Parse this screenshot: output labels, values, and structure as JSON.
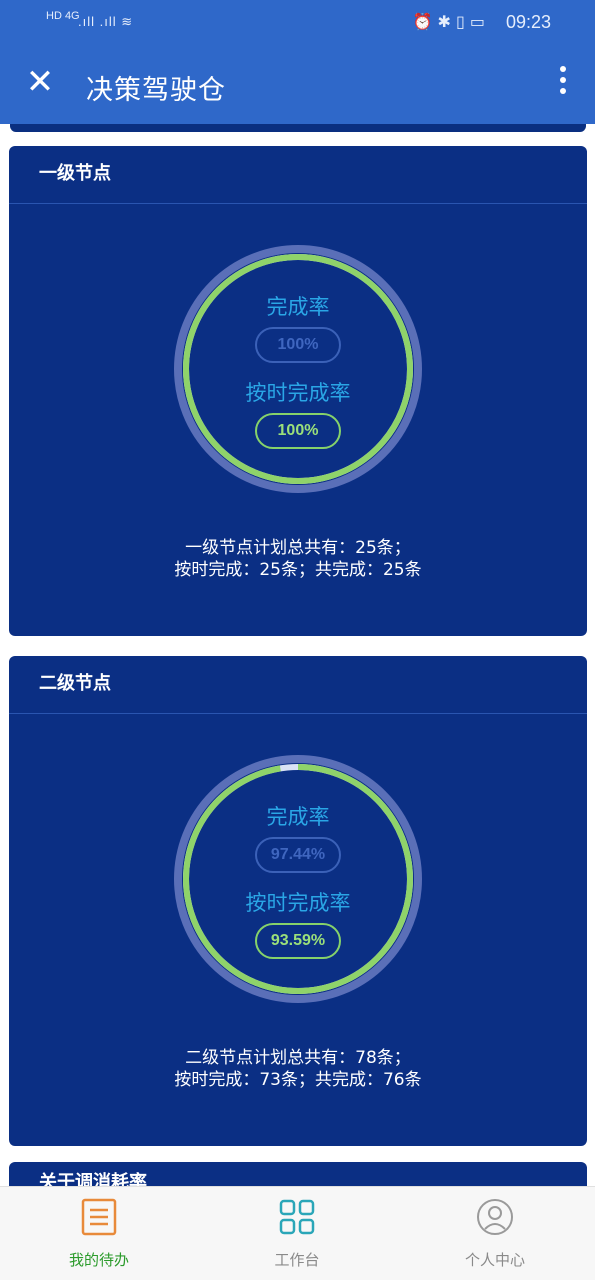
{
  "status_bar": {
    "left_indicators": "HD 4G",
    "right_icons": "⏰ ✱ ▯ ▭",
    "time": "09:23"
  },
  "app_bar": {
    "close_icon": "close-icon",
    "title": "决策驾驶仓",
    "more_icon": "more-vertical-icon"
  },
  "cards": [
    {
      "title": "一级节点",
      "completion_label": "完成率",
      "completion_value": "100%",
      "completion_fraction": 1.0,
      "ontime_label": "按时完成率",
      "ontime_value": "100%",
      "ontime_fraction": 1.0,
      "summary_line1": "一级节点计划总共有：25条；",
      "summary_line2": "按时完成：25条；共完成：25条"
    },
    {
      "title": "二级节点",
      "completion_label": "完成率",
      "completion_value": "97.44%",
      "completion_fraction": 0.9744,
      "ontime_label": "按时完成率",
      "ontime_value": "93.59%",
      "ontime_fraction": 0.9359,
      "summary_line1": "二级节点计划总共有：78条；",
      "summary_line2": "按时完成：73条；共完成：76条"
    }
  ],
  "partial_card_title": "关于调消耗率",
  "tabs": [
    {
      "label": "我的待办",
      "icon": "todo-list-icon",
      "active": true
    },
    {
      "label": "工作台",
      "icon": "grid-apps-icon",
      "active": false
    },
    {
      "label": "个人中心",
      "icon": "user-profile-icon",
      "active": false
    }
  ],
  "colors": {
    "app_bar": "#2f68c9",
    "card_bg": "#0b2f84",
    "ring_outer": "#5a6fb8",
    "ring_progress": "#8fd36a",
    "label_blue": "#2aa6e6",
    "tab_active": "#2b9b2b"
  }
}
